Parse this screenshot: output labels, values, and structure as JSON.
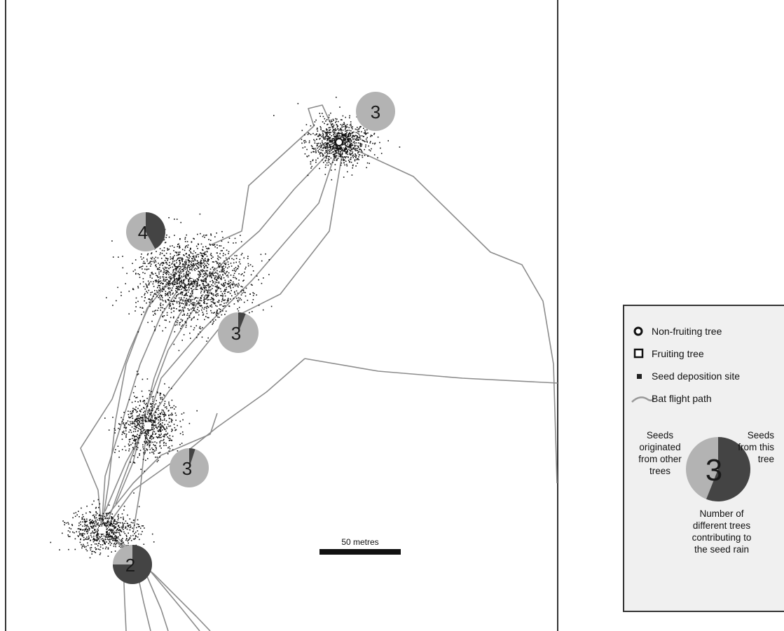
{
  "map": {
    "pies": [
      {
        "id": "pie-top",
        "number": "3",
        "own_fraction": 0.0
      },
      {
        "id": "pie-upper-left",
        "number": "4",
        "own_fraction": 0.42
      },
      {
        "id": "pie-middle",
        "number": "3",
        "own_fraction": 0.06
      },
      {
        "id": "pie-lower",
        "number": "3",
        "own_fraction": 0.05
      },
      {
        "id": "pie-bottom",
        "number": "2",
        "own_fraction": 0.75
      }
    ],
    "scale_bar": {
      "label": "50 metres"
    }
  },
  "legend": {
    "non_fruiting_tree": "Non-fruiting tree",
    "fruiting_tree": "Fruiting tree",
    "seed_deposition_site": "Seed deposition site",
    "bat_flight_path": "Bat flight path",
    "example_pie": {
      "number": "3",
      "own_fraction": 0.56,
      "left_label": [
        "Seeds",
        "originated",
        "from other",
        "trees"
      ],
      "right_label": [
        "Seeds",
        "from this",
        "tree"
      ],
      "bottom_label": [
        "Number of",
        "different trees",
        "contributing to",
        "the seed rain"
      ]
    }
  },
  "colors": {
    "map_border": "#333333",
    "flight_path": "#8c8c8c",
    "deposition": "#111111",
    "pie_dark": "#444444",
    "pie_light": "#b3b3b3",
    "legend_bg": "#f0f0f0",
    "scale_bar": "#111111"
  }
}
